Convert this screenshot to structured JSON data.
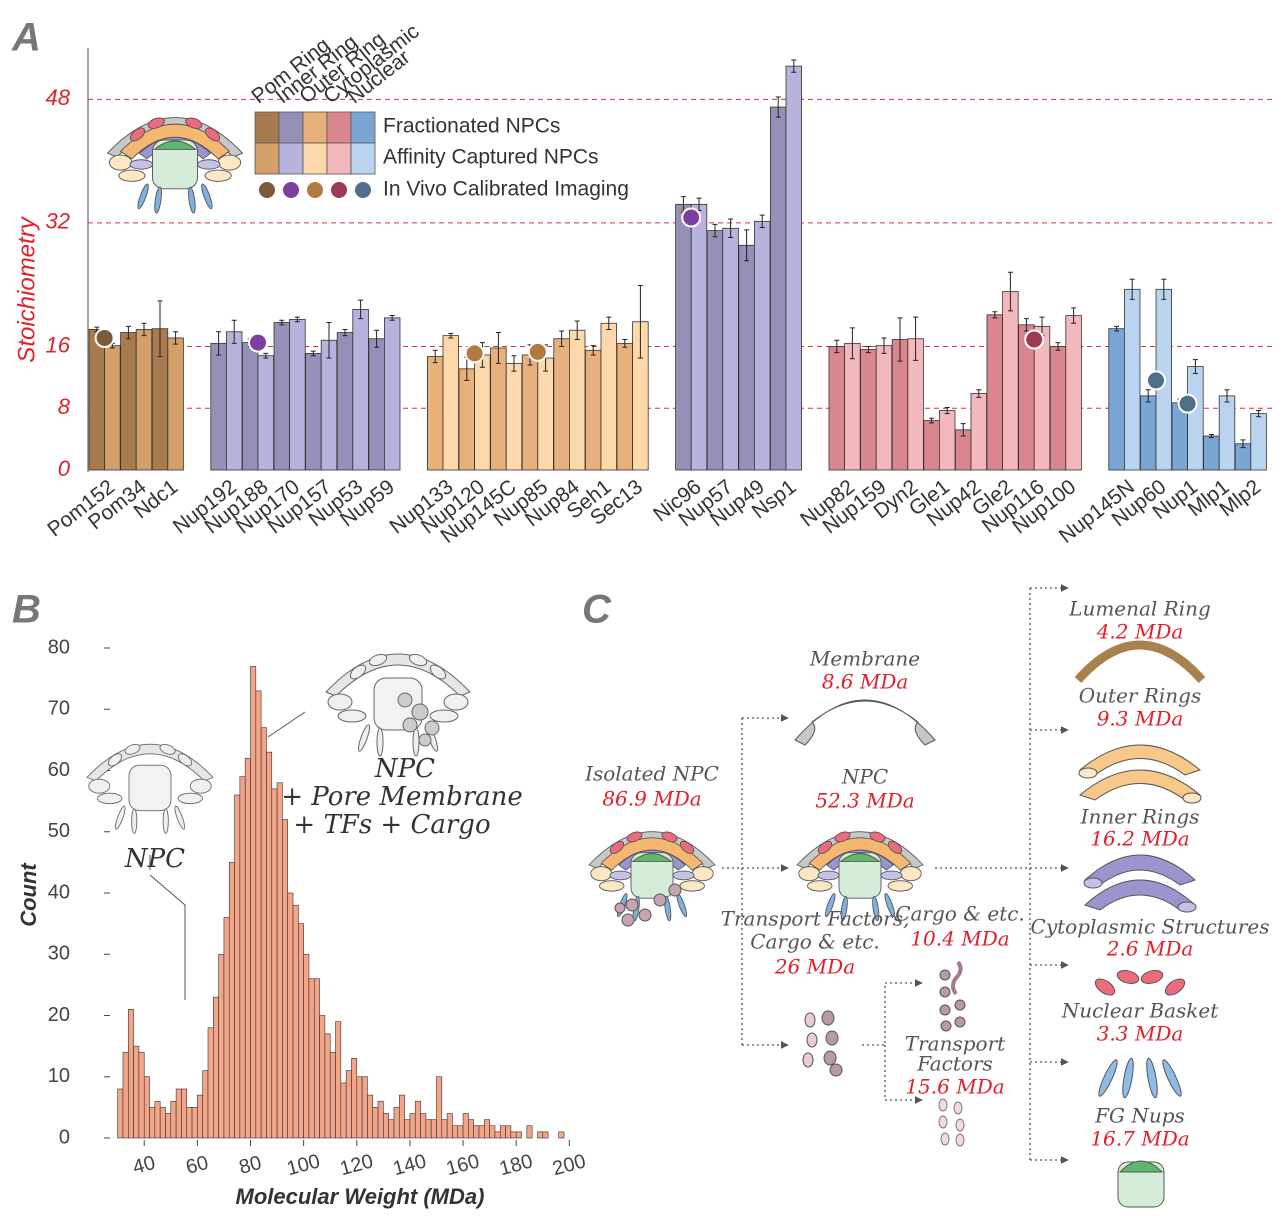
{
  "chart_data": [
    {
      "type": "bar",
      "panel": "A",
      "ylabel": "Stoichiometry",
      "ylim": [
        0,
        54
      ],
      "yticks": [
        0,
        8,
        16,
        32,
        48
      ],
      "grid": true,
      "categories": [
        "Pom152",
        "Pom34",
        "Ndc1",
        "Nup192",
        "Nup188",
        "Nup170",
        "Nup157",
        "Nup53",
        "Nup59",
        "Nup133",
        "Nup120",
        "Nup145C",
        "Nup85",
        "Nup84",
        "Seh1",
        "Sec13",
        "Nic96",
        "Nup57",
        "Nup49",
        "Nsp1",
        "Nup82",
        "Nup159",
        "Dyn2",
        "Gle1",
        "Nup42",
        "Gle2",
        "Nup116",
        "Nup100",
        "Nup145N",
        "Nup60",
        "Nup1",
        "Mlp1",
        "Mlp2"
      ],
      "category_group": [
        "Pom Ring",
        "Pom Ring",
        "Pom Ring",
        "Inner Ring",
        "Inner Ring",
        "Inner Ring",
        "Inner Ring",
        "Inner Ring",
        "Inner Ring",
        "Outer Ring",
        "Outer Ring",
        "Outer Ring",
        "Outer Ring",
        "Outer Ring",
        "Outer Ring",
        "Outer Ring",
        "Inner Ring",
        "Inner Ring",
        "Inner Ring",
        "Inner Ring",
        "Cytoplasmic",
        "Cytoplasmic",
        "Cytoplasmic",
        "Cytoplasmic",
        "Cytoplasmic",
        "Cytoplasmic",
        "Cytoplasmic",
        "Cytoplasmic",
        "Nuclear",
        "Nuclear",
        "Nuclear",
        "Nuclear",
        "Nuclear"
      ],
      "category_colors": [
        "#333",
        "#333",
        "#333",
        "#333",
        "#333",
        "#333",
        "#333",
        "#333",
        "#333",
        "#333",
        "#333",
        "#333",
        "#333",
        "#333",
        "#333",
        "#333",
        "#333",
        "#1a8a3a",
        "#1a8a3a",
        "#1a8a3a",
        "#333",
        "#1a8a3a",
        "#333",
        "#333",
        "#1a8a3a",
        "#333",
        "#1a8a3a",
        "#1a8a3a",
        "#1a8a3a",
        "#1a8a3a",
        "#1a8a3a",
        "#999",
        "#999"
      ],
      "groups": [
        {
          "name": "Pom Ring",
          "label_color": "#8b6a40",
          "colors": [
            "#a87a4f",
            "#d4a06a"
          ],
          "dot_color": "#7a5a3a"
        },
        {
          "name": "Inner Ring",
          "label_color": "#5b5ba6",
          "colors": [
            "#9490b8",
            "#b6b3dc"
          ],
          "dot_color": "#7b3fa0"
        },
        {
          "name": "Outer Ring",
          "label_color": "#d79a55",
          "colors": [
            "#e8b07a",
            "#fcd8aa"
          ],
          "dot_color": "#b07a40"
        },
        {
          "name": "Cytoplasmic",
          "label_color": "#c07585",
          "colors": [
            "#d9868e",
            "#f3b8bc"
          ],
          "dot_color": "#9b3a52"
        },
        {
          "name": "Nuclear",
          "label_color": "#4f97c9",
          "colors": [
            "#7aa6d6",
            "#bad4ef"
          ],
          "dot_color": "#4f6f8a"
        }
      ],
      "series": [
        {
          "name": "Fractionated NPCs",
          "values": [
            18.2,
            17.8,
            18.3,
            16.4,
            16.5,
            19.1,
            15.1,
            17.8,
            17.0,
            14.7,
            13.1,
            15.8,
            14.9,
            17.0,
            15.5,
            16.4,
            34.4,
            31.0,
            29.1,
            47.0,
            16.0,
            15.6,
            16.9,
            6.4,
            5.2,
            20.1,
            18.8,
            16.0,
            18.3,
            9.6,
            8.7,
            4.4,
            3.4
          ],
          "errors": [
            0.3,
            0.8,
            3.6,
            1.5,
            0.5,
            0.3,
            0.3,
            0.4,
            1.1,
            0.8,
            1.5,
            2.0,
            1.3,
            1.0,
            0.6,
            0.5,
            1.0,
            0.8,
            2.0,
            1.3,
            0.8,
            0.4,
            2.8,
            0.3,
            0.8,
            0.4,
            0.8,
            0.5,
            0.3,
            0.8,
            0.5,
            0.2,
            0.5
          ]
        },
        {
          "name": "Affinity Captured NPCs",
          "values": [
            16.1,
            18.2,
            17.1,
            17.9,
            14.8,
            19.5,
            16.8,
            20.8,
            19.7,
            17.4,
            14.9,
            13.8,
            14.5,
            18.1,
            19.0,
            19.2,
            34.4,
            31.3,
            32.2,
            52.3,
            16.4,
            16.1,
            17.0,
            7.7,
            9.9,
            23.1,
            18.6,
            20.0,
            23.4,
            23.4,
            13.4,
            9.6,
            7.3
          ],
          "errors": [
            0.3,
            0.8,
            0.8,
            1.5,
            0.3,
            0.3,
            2.3,
            1.2,
            0.3,
            0.3,
            1.6,
            1.0,
            1.7,
            1.2,
            0.8,
            4.7,
            0.8,
            1.2,
            0.8,
            0.8,
            2.0,
            1.0,
            2.8,
            0.4,
            0.5,
            2.5,
            1.2,
            1.0,
            1.3,
            1.3,
            0.9,
            0.8,
            0.4
          ]
        },
        {
          "name": "In Vivo Calibrated Imaging",
          "values": [
            17.1,
            null,
            null,
            null,
            16.5,
            null,
            null,
            null,
            null,
            null,
            15.1,
            null,
            15.3,
            null,
            null,
            null,
            32.7,
            null,
            null,
            null,
            null,
            null,
            null,
            null,
            null,
            null,
            16.9,
            null,
            null,
            11.6,
            8.6,
            null,
            null
          ]
        }
      ]
    },
    {
      "type": "histogram",
      "panel": "B",
      "xlabel": "Molecular Weight (MDa)",
      "ylabel": "Count",
      "xlim": [
        29,
        201
      ],
      "ylim": [
        0,
        80
      ],
      "xticks": [
        40,
        60,
        80,
        100,
        120,
        140,
        160,
        180,
        200
      ],
      "yticks": [
        0,
        10,
        20,
        30,
        40,
        50,
        60,
        70,
        80
      ],
      "color": "#f4a587",
      "bins": [
        30,
        32,
        34,
        36,
        38,
        40,
        42,
        44,
        46,
        48,
        50,
        52,
        54,
        56,
        58,
        60,
        62,
        64,
        66,
        68,
        70,
        72,
        74,
        76,
        78,
        80,
        82,
        84,
        86,
        88,
        90,
        92,
        94,
        96,
        98,
        100,
        102,
        104,
        106,
        108,
        110,
        112,
        114,
        116,
        118,
        120,
        122,
        124,
        126,
        128,
        130,
        132,
        134,
        136,
        138,
        140,
        142,
        144,
        146,
        148,
        150,
        152,
        154,
        156,
        158,
        160,
        162,
        164,
        166,
        168,
        170,
        172,
        174,
        176,
        178,
        180,
        182,
        184,
        186,
        188,
        190,
        192,
        194,
        196,
        198,
        200
      ],
      "counts": [
        8,
        14,
        21,
        15,
        14,
        10,
        5,
        6,
        5,
        4,
        6,
        8,
        8,
        5,
        5,
        7,
        11,
        18,
        23,
        30,
        36,
        45,
        56,
        59,
        62,
        77,
        73,
        67,
        63,
        57,
        58,
        52,
        40,
        38,
        35,
        30,
        26,
        26,
        20,
        17,
        14,
        19,
        9,
        11,
        13,
        10,
        10,
        7,
        5,
        6,
        4,
        3,
        5,
        7,
        3,
        4,
        6,
        4,
        3,
        3,
        10,
        3,
        4,
        2,
        2,
        4,
        3,
        2,
        2,
        3,
        2,
        1,
        2,
        2,
        1,
        1,
        0,
        2,
        0,
        1,
        1,
        0,
        0,
        1,
        0
      ],
      "annotations": [
        "NPC",
        "NPC",
        "+ Pore Membrane",
        "+ TFs + Cargo"
      ]
    }
  ],
  "diagram": {
    "panel": "C",
    "nodes": [
      {
        "label": "Isolated NPC",
        "value": "86.9 MDa"
      },
      {
        "label": "Membrane",
        "value": "8.6 MDa"
      },
      {
        "label": "NPC",
        "value": "52.3 MDa"
      },
      {
        "label": [
          "Transport Factors,",
          "Cargo & etc."
        ],
        "value": "26 MDa"
      },
      {
        "label": "Cargo & etc.",
        "value": "10.4 MDa"
      },
      {
        "label": [
          "Transport",
          "Factors"
        ],
        "value": "15.6 MDa"
      },
      {
        "label": "Lumenal Ring",
        "value": "4.2 MDa"
      },
      {
        "label": "Outer Rings",
        "value": "9.3 MDa"
      },
      {
        "label": "Inner Rings",
        "value": "16.2 MDa"
      },
      {
        "label": "Cytoplasmic Structures",
        "value": "2.6 MDa"
      },
      {
        "label": "Nuclear Basket",
        "value": "3.3 MDa"
      },
      {
        "label": "FG Nups",
        "value": "16.7 MDa"
      }
    ]
  }
}
